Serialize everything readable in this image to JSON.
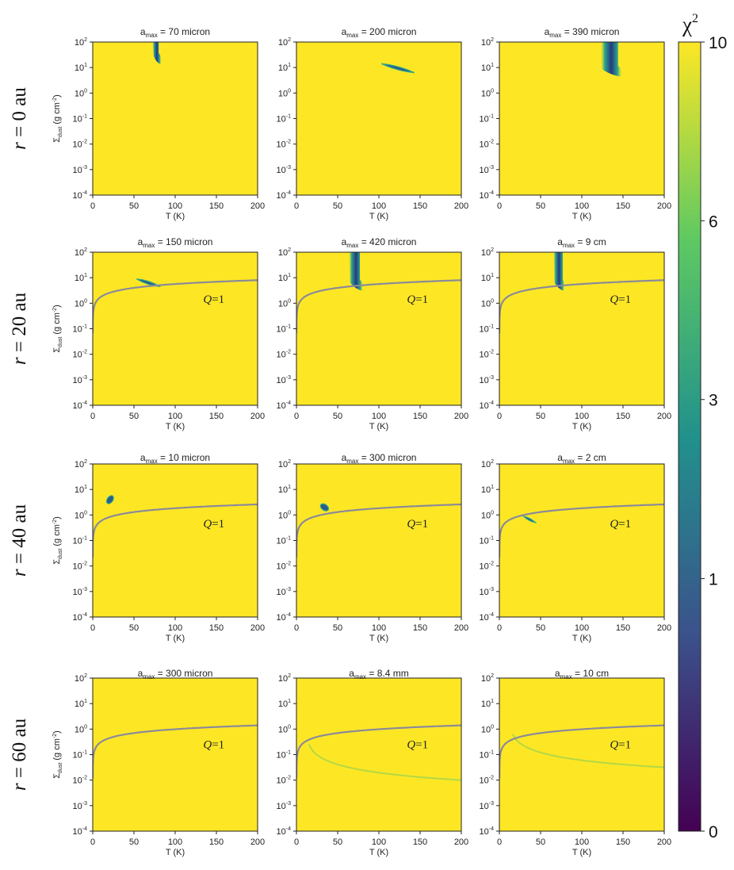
{
  "chart_data": {
    "type": "heatmap",
    "colorbar": {
      "label": "χ",
      "label_superscript": "2",
      "ticks": [
        "10",
        "6",
        "3",
        "1",
        "0"
      ],
      "range": [
        0,
        10
      ],
      "colors": [
        "#440154",
        "#3b528b",
        "#21918c",
        "#5ec962",
        "#fde725"
      ]
    },
    "x_axis": {
      "label": "T (K)",
      "ticks": [
        "0",
        "50",
        "100",
        "150",
        "200"
      ],
      "range": [
        0,
        200
      ]
    },
    "y_axis": {
      "label_main": "Σ",
      "label_sub": "dust",
      "label_unit": " (g cm",
      "label_unit_sup": "-2",
      "label_end": ")",
      "ticks": [
        {
          "base": "10",
          "exp": "2"
        },
        {
          "base": "10",
          "exp": "1"
        },
        {
          "base": "10",
          "exp": "0"
        },
        {
          "base": "10",
          "exp": "-1"
        },
        {
          "base": "10",
          "exp": "-2"
        },
        {
          "base": "10",
          "exp": "-3"
        },
        {
          "base": "10",
          "exp": "-4"
        }
      ],
      "range_log10": [
        -4,
        2
      ]
    },
    "q_label": {
      "italic": "Q",
      "rest": "=1"
    },
    "rows": [
      {
        "label_var": "r",
        "label_rest": " = 0 au",
        "q_curve_scale": null,
        "panels": [
          {
            "title_base": "a",
            "title_sub": "max",
            "title_rest": " = 70 micron",
            "blobs": [
              {
                "kind": "vertical",
                "T": 76,
                "logS_top": 2.0,
                "logS_bottom": 1.2,
                "width_T": 8,
                "foot_T": 82
              }
            ],
            "faint_curve": null
          },
          {
            "title_base": "a",
            "title_sub": "max",
            "title_rest": " = 200 micron",
            "blobs": [
              {
                "kind": "streak",
                "T1": 103,
                "logS1": 1.15,
                "T2": 143,
                "logS2": 0.8,
                "thick": 0.12
              }
            ],
            "faint_curve": null
          },
          {
            "title_base": "a",
            "title_sub": "max",
            "title_rest": " = 390 micron",
            "blobs": [
              {
                "kind": "vertical",
                "T": 133,
                "logS_top": 2.0,
                "logS_bottom": 0.7,
                "width_T": 22,
                "foot_T": 148
              }
            ],
            "faint_curve": null
          }
        ]
      },
      {
        "label_var": "r",
        "label_rest": " = 20 au",
        "q_curve_scale": 8.0,
        "panels": [
          {
            "title_base": "a",
            "title_sub": "max",
            "title_rest": " = 150 micron",
            "blobs": [
              {
                "kind": "streak",
                "T1": 53,
                "logS1": 0.95,
                "T2": 82,
                "logS2": 0.65,
                "thick": 0.12
              }
            ],
            "faint_curve": null
          },
          {
            "title_base": "a",
            "title_sub": "max",
            "title_rest": " = 420 micron",
            "blobs": [
              {
                "kind": "vertical",
                "T": 70,
                "logS_top": 2.0,
                "logS_bottom": 0.55,
                "width_T": 14,
                "foot_T": 80
              }
            ],
            "faint_curve": null
          },
          {
            "title_base": "a",
            "title_sub": "max",
            "title_rest": " = 9 cm",
            "blobs": [
              {
                "kind": "vertical",
                "T": 71,
                "logS_top": 2.0,
                "logS_bottom": 0.55,
                "width_T": 12,
                "foot_T": 78
              }
            ],
            "faint_curve": null
          }
        ]
      },
      {
        "label_var": "r",
        "label_rest": " = 40 au",
        "q_curve_scale": 2.6,
        "panels": [
          {
            "title_base": "a",
            "title_sub": "max",
            "title_rest": " = 10 micron",
            "blobs": [
              {
                "kind": "dot",
                "T": 21,
                "logS": 0.6,
                "rT": 2,
                "rS": 0.13
              }
            ],
            "faint_curve": null
          },
          {
            "title_base": "a",
            "title_sub": "max",
            "title_rest": " = 300 micron",
            "blobs": [
              {
                "kind": "dot",
                "T": 34,
                "logS": 0.3,
                "rT": 4,
                "rS": 0.07
              }
            ],
            "faint_curve": null
          },
          {
            "title_base": "a",
            "title_sub": "max",
            "title_rest": " = 2 cm",
            "blobs": [
              {
                "kind": "streak",
                "T1": 29,
                "logS1": -0.05,
                "T2": 44,
                "logS2": -0.3,
                "thick": 0.09
              }
            ],
            "faint_curve": null
          }
        ]
      },
      {
        "label_var": "r",
        "label_rest": " = 60 au",
        "q_curve_scale": 1.4,
        "panels": [
          {
            "title_base": "a",
            "title_sub": "max",
            "title_rest": " = 300 micron",
            "blobs": [],
            "faint_curve": null
          },
          {
            "title_base": "a",
            "title_sub": "max",
            "title_rest": " = 8.4 mm",
            "blobs": [],
            "faint_curve": {
              "T_start": 15,
              "logS_start": -0.6,
              "T_end": 200,
              "logS_end": -2.0
            }
          },
          {
            "title_base": "a",
            "title_sub": "max",
            "title_rest": " = 10 cm",
            "blobs": [],
            "faint_curve": {
              "T_start": 16,
              "logS_start": -0.2,
              "T_end": 200,
              "logS_end": -1.5
            }
          }
        ]
      }
    ]
  }
}
